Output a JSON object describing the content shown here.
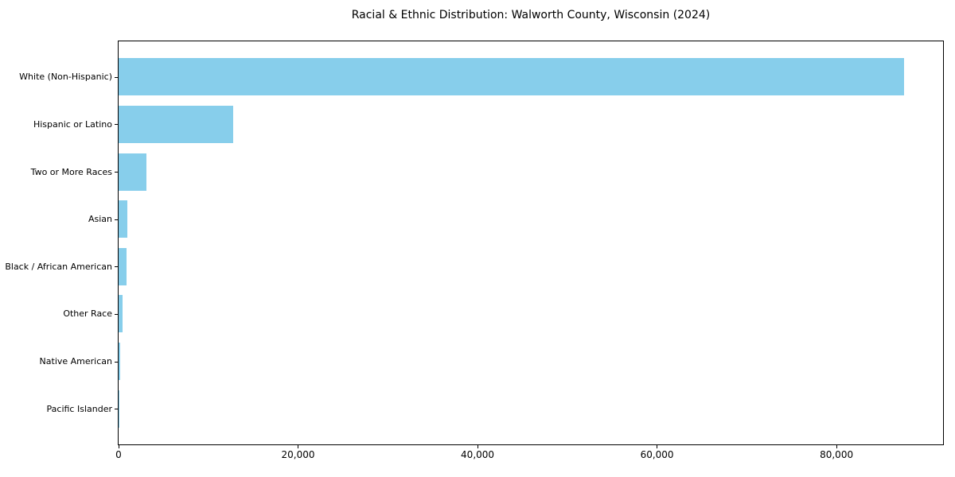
{
  "chart_data": {
    "type": "bar",
    "orientation": "horizontal",
    "title": "Racial & Ethnic Distribution: Walworth County, Wisconsin (2024)",
    "categories": [
      "White (Non-Hispanic)",
      "Hispanic or Latino",
      "Two or More Races",
      "Asian",
      "Black / African American",
      "Other Race",
      "Native American",
      "Pacific Islander"
    ],
    "values": [
      87500,
      12800,
      3100,
      1000,
      900,
      400,
      150,
      30
    ],
    "xlabel": "",
    "ylabel": "",
    "xlim": [
      0,
      91875
    ],
    "xticks": [
      0,
      20000,
      40000,
      60000,
      80000
    ],
    "xtick_labels": [
      "0",
      "20,000",
      "40,000",
      "60,000",
      "80,000"
    ],
    "bar_color": "#87CEEB",
    "grid": false,
    "legend_position": "none"
  }
}
